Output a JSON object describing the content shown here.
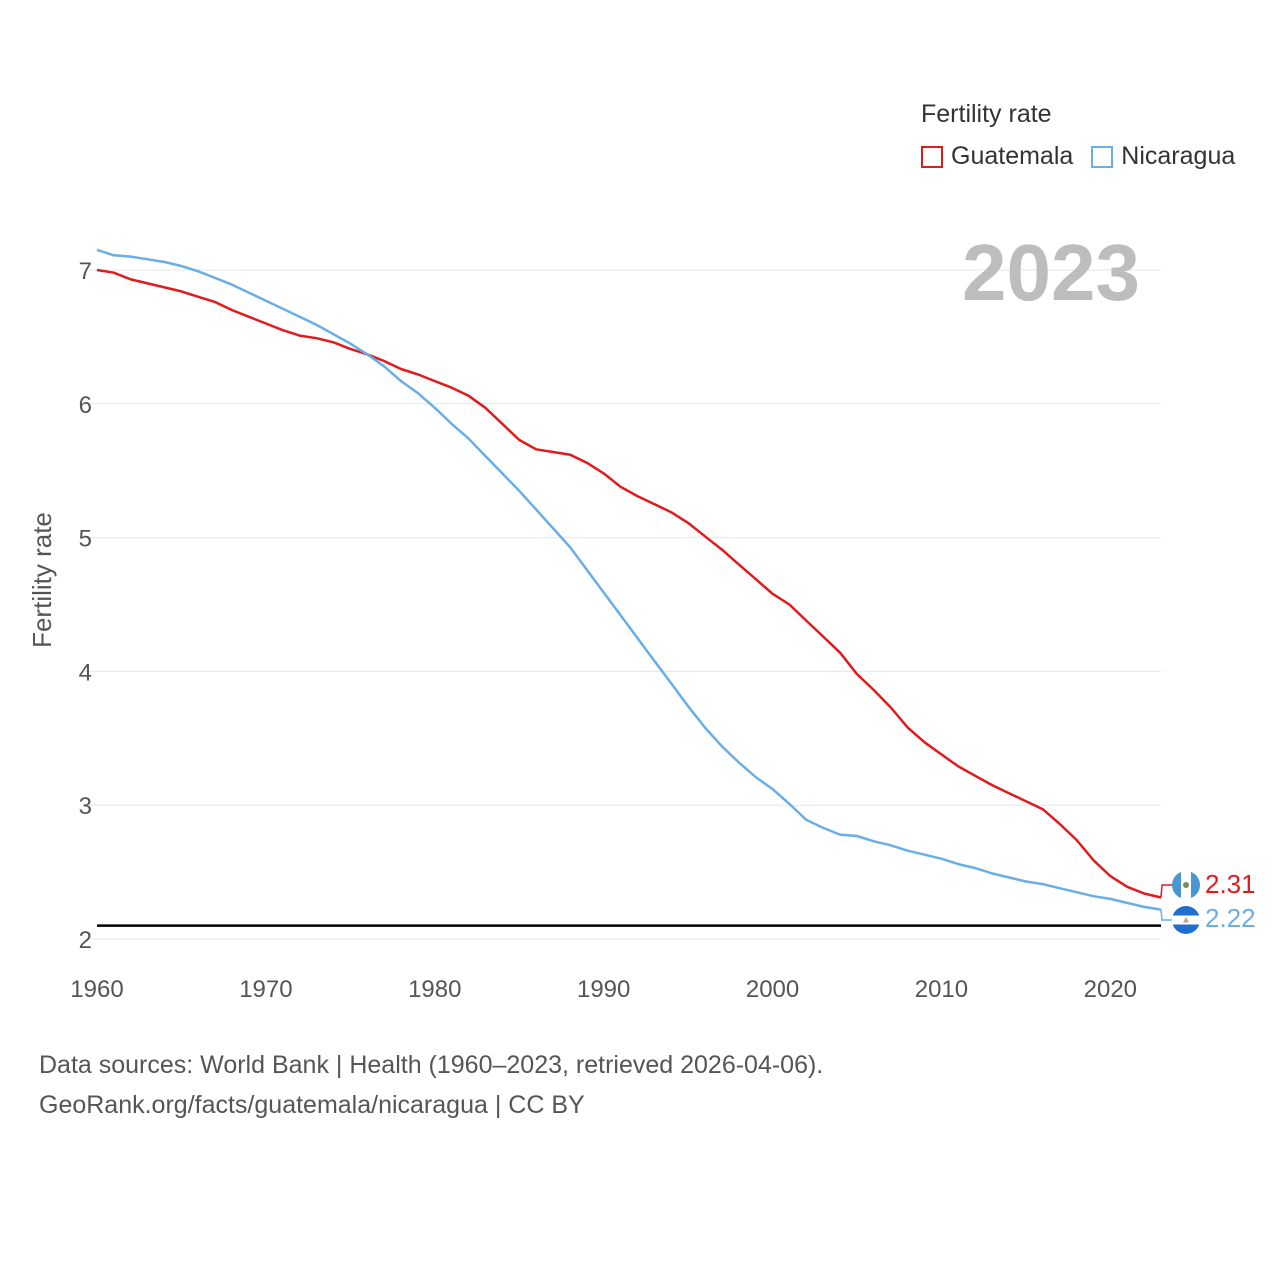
{
  "legend": {
    "title": "Fertility rate"
  },
  "year_label": "2023",
  "footer": {
    "line1": "Data sources: World Bank | Health (1960–2023, retrieved 2026-04-06).",
    "line2": "GeoRank.org/facts/guatemala/nicaragua | CC BY"
  },
  "colors": {
    "guatemala": "#e31a1c",
    "nicaragua": "#6aaee6",
    "reference": "#000000",
    "grid": "#e6e6e6"
  },
  "chart_data": {
    "type": "line",
    "title": "",
    "xlabel": "",
    "ylabel": "Fertility rate",
    "xlim": [
      1960,
      2023
    ],
    "ylim": [
      2,
      7
    ],
    "x_ticks": [
      1960,
      1970,
      1980,
      1990,
      2000,
      2010,
      2020
    ],
    "y_ticks": [
      2,
      3,
      4,
      5,
      6,
      7
    ],
    "reference_line": 2.1,
    "x": [
      1960,
      1961,
      1962,
      1963,
      1964,
      1965,
      1966,
      1967,
      1968,
      1969,
      1970,
      1971,
      1972,
      1973,
      1974,
      1975,
      1976,
      1977,
      1978,
      1979,
      1980,
      1981,
      1982,
      1983,
      1984,
      1985,
      1986,
      1987,
      1988,
      1989,
      1990,
      1991,
      1992,
      1993,
      1994,
      1995,
      1996,
      1997,
      1998,
      1999,
      2000,
      2001,
      2002,
      2003,
      2004,
      2005,
      2006,
      2007,
      2008,
      2009,
      2010,
      2011,
      2012,
      2013,
      2014,
      2015,
      2016,
      2017,
      2018,
      2019,
      2020,
      2021,
      2022,
      2023
    ],
    "series": [
      {
        "name": "Guatemala",
        "color": "#e31a1c",
        "end_label": "2.31",
        "values": [
          7.0,
          6.98,
          6.93,
          6.9,
          6.87,
          6.84,
          6.8,
          6.76,
          6.7,
          6.65,
          6.6,
          6.55,
          6.51,
          6.49,
          6.46,
          6.41,
          6.37,
          6.32,
          6.26,
          6.22,
          6.17,
          6.12,
          6.06,
          5.97,
          5.85,
          5.73,
          5.66,
          5.64,
          5.62,
          5.56,
          5.48,
          5.38,
          5.31,
          5.25,
          5.19,
          5.11,
          5.01,
          4.91,
          4.8,
          4.69,
          4.58,
          4.5,
          4.38,
          4.26,
          4.14,
          3.98,
          3.86,
          3.73,
          3.58,
          3.47,
          3.38,
          3.29,
          3.22,
          3.15,
          3.09,
          3.03,
          2.97,
          2.86,
          2.74,
          2.59,
          2.47,
          2.39,
          2.34,
          2.31
        ]
      },
      {
        "name": "Nicaragua",
        "color": "#6aaee6",
        "end_label": "2.22",
        "values": [
          7.15,
          7.11,
          7.1,
          7.08,
          7.06,
          7.03,
          6.99,
          6.94,
          6.89,
          6.83,
          6.77,
          6.71,
          6.65,
          6.59,
          6.52,
          6.45,
          6.37,
          6.28,
          6.17,
          6.08,
          5.97,
          5.85,
          5.74,
          5.61,
          5.48,
          5.35,
          5.21,
          5.07,
          4.93,
          4.76,
          4.59,
          4.42,
          4.25,
          4.08,
          3.91,
          3.74,
          3.58,
          3.44,
          3.32,
          3.21,
          3.12,
          3.01,
          2.89,
          2.83,
          2.78,
          2.77,
          2.73,
          2.7,
          2.66,
          2.63,
          2.6,
          2.56,
          2.53,
          2.49,
          2.46,
          2.43,
          2.41,
          2.38,
          2.35,
          2.32,
          2.3,
          2.27,
          2.24,
          2.22
        ]
      }
    ]
  }
}
